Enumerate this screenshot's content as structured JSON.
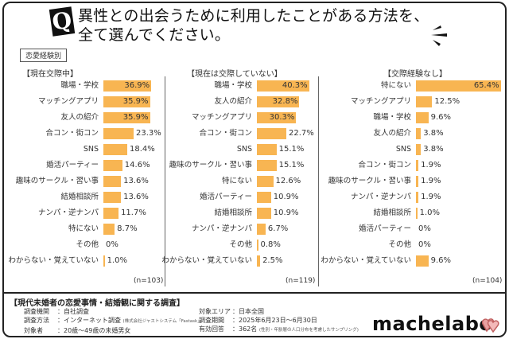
{
  "header": {
    "q_mark": "Q",
    "title_line1": "異性との出会うために利用したことがある方法を、",
    "title_line2": "全て選んでください。",
    "category_tag": "恋愛経験別"
  },
  "colors": {
    "bar": "#f8b552",
    "frame": "#222222",
    "text": "#333333"
  },
  "chart_data": [
    {
      "type": "bar",
      "orientation": "horizontal",
      "title": "【現在交際中】",
      "unit": "%",
      "n": "(n=103)",
      "categories": [
        "職場・学校",
        "マッチングアプリ",
        "友人の紹介",
        "合コン・街コン",
        "SNS",
        "婚活パーティー",
        "趣味のサークル・習い事",
        "結婚相談所",
        "ナンパ・逆ナンパ",
        "特にない",
        "その他",
        "わからない・覚えていない"
      ],
      "values": [
        36.9,
        35.9,
        35.9,
        23.3,
        18.4,
        14.6,
        13.6,
        13.6,
        11.7,
        8.7,
        0,
        1.0
      ],
      "value_labels": [
        "36.9%",
        "35.9%",
        "35.9%",
        "23.3%",
        "18.4%",
        "14.6%",
        "13.6%",
        "13.6%",
        "11.7%",
        "8.7%",
        "0%",
        "1.0%"
      ],
      "xlim": [
        0,
        70
      ],
      "grid": false
    },
    {
      "type": "bar",
      "orientation": "horizontal",
      "title": "【現在は交際していない】",
      "unit": "%",
      "n": "(n=119)",
      "categories": [
        "職場・学校",
        "友人の紹介",
        "マッチングアプリ",
        "合コン・街コン",
        "SNS",
        "趣味のサークル・習い事",
        "特にない",
        "婚活パーティー",
        "結婚相談所",
        "ナンパ・逆ナンパ",
        "その他",
        "わからない・覚えていない"
      ],
      "values": [
        40.3,
        32.8,
        30.3,
        22.7,
        15.1,
        15.1,
        12.6,
        10.9,
        10.9,
        6.7,
        0.8,
        2.5
      ],
      "value_labels": [
        "40.3%",
        "32.8%",
        "30.3%",
        "22.7%",
        "15.1%",
        "15.1%",
        "12.6%",
        "10.9%",
        "10.9%",
        "6.7%",
        "0.8%",
        "2.5%"
      ],
      "xlim": [
        0,
        70
      ],
      "grid": false
    },
    {
      "type": "bar",
      "orientation": "horizontal",
      "title": "【交際経験なし】",
      "unit": "%",
      "n": "(n=104)",
      "categories": [
        "特にない",
        "マッチングアプリ",
        "職場・学校",
        "友人の紹介",
        "SNS",
        "合コン・街コン",
        "趣味のサークル・習い事",
        "ナンパ・逆ナンパ",
        "結婚相談所",
        "婚活パーティー",
        "その他",
        "わからない・覚えていない"
      ],
      "values": [
        65.4,
        12.5,
        9.6,
        3.8,
        3.8,
        1.9,
        1.9,
        1.9,
        1.0,
        0,
        0,
        9.6
      ],
      "value_labels": [
        "65.4%",
        "12.5%",
        "9.6%",
        "3.8%",
        "3.8%",
        "1.9%",
        "1.9%",
        "1.9%",
        "1.0%",
        "0%",
        "0%",
        "9.6%"
      ],
      "xlim": [
        0,
        70
      ],
      "grid": false
    }
  ],
  "footer": {
    "survey_title": "【現代未婚者の恋愛事情・結婚観に関する調査】",
    "left": [
      {
        "key": "調査機関",
        "value": "：自社調査",
        "note": ""
      },
      {
        "key": "調査方法",
        "value": "：インターネット調査",
        "note": "(株式会社ジャストシステム「Fastask」)"
      },
      {
        "key": "対象者",
        "value": "：20歳〜49歳の未婚男女",
        "note": ""
      }
    ],
    "right": [
      {
        "key": "対象エリア",
        "value": "：日本全国",
        "note": ""
      },
      {
        "key": "調査期間",
        "value": "：2025年6月23日〜6月30日",
        "note": ""
      },
      {
        "key": "有効回答",
        "value": "：362名",
        "note": "(性別・年齢層の人口分布を考慮したサンプリング)"
      }
    ],
    "logo_text": "machelabo"
  }
}
